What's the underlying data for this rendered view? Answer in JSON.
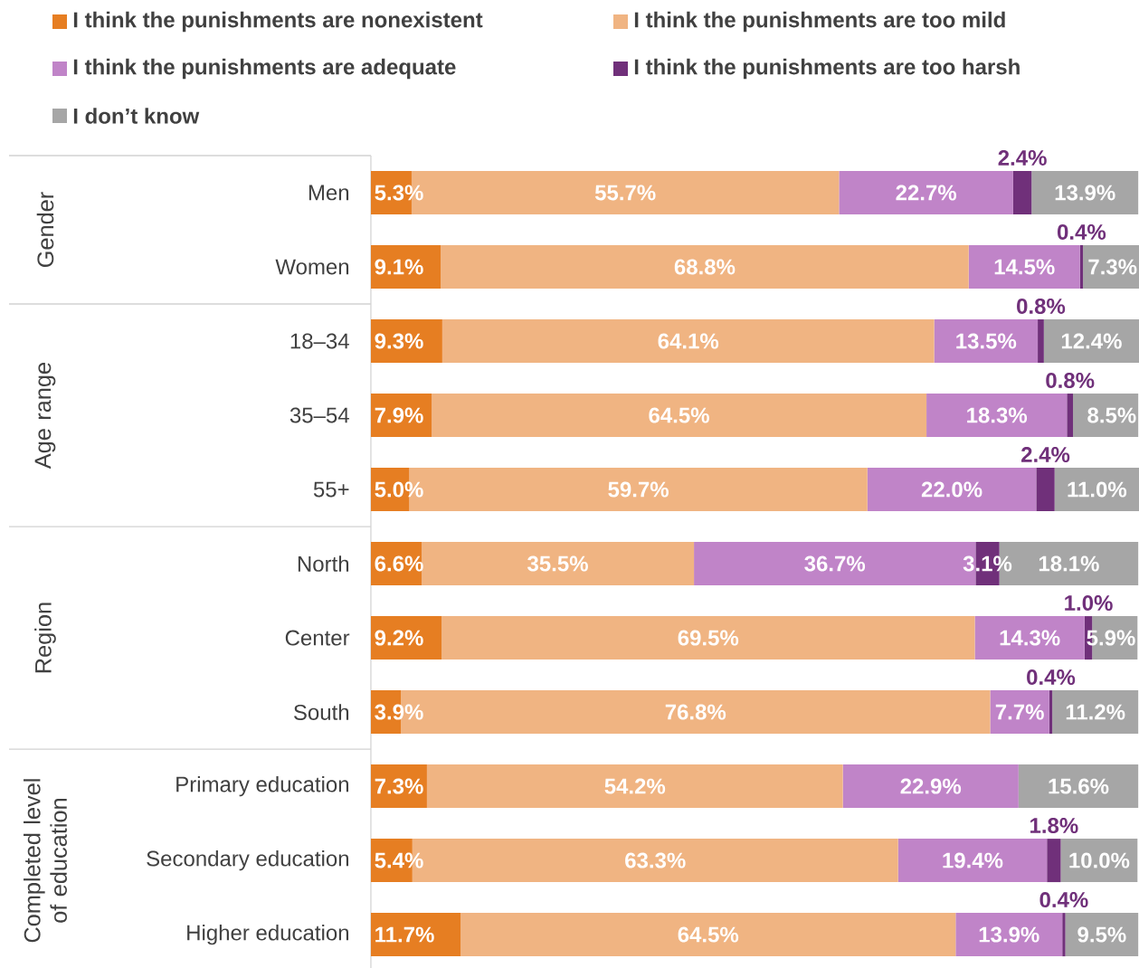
{
  "chart_data": {
    "type": "bar",
    "orientation": "horizontal",
    "stacked": true,
    "legend": "top",
    "xlim": [
      0,
      100.1
    ],
    "categories": [
      "Men",
      "Women",
      "18–34",
      "35–54",
      "55+",
      "North",
      "Center",
      "South",
      "Primary education",
      "Secondary education",
      "Higher education"
    ],
    "annotations": [
      "Gender",
      "Age range",
      "Region",
      "Completed level of education"
    ],
    "series": [
      {
        "name": "I think the punishments are nonexistent",
        "color": "#e67e22",
        "values": [
          5.3,
          9.1,
          9.3,
          7.9,
          5.0,
          6.6,
          9.2,
          3.9,
          7.3,
          5.4,
          11.7
        ],
        "value_labels": [
          "5.3%",
          "9.1%",
          "9.3%",
          "7.9%",
          "5.0%",
          "6.6%",
          "9.2%",
          "3.9%",
          "7.3%",
          "5.4%",
          "11.7%"
        ]
      },
      {
        "name": "I think the punishments are too mild",
        "color": "#f0b482",
        "values": [
          55.7,
          68.8,
          64.1,
          64.5,
          59.7,
          35.5,
          69.5,
          76.8,
          54.2,
          63.3,
          64.5
        ],
        "value_labels": [
          "55.7%",
          "68.8%",
          "64.1%",
          "64.5%",
          "59.7%",
          "35.5%",
          "69.5%",
          "76.8%",
          "54.2%",
          "63.3%",
          "64.5%"
        ]
      },
      {
        "name": "I think the punishments are adequate",
        "color": "#c084c8",
        "values": [
          22.7,
          14.5,
          13.5,
          18.3,
          22.0,
          36.7,
          14.3,
          7.7,
          22.9,
          19.4,
          13.9
        ],
        "value_labels": [
          "22.7%",
          "14.5%",
          "13.5%",
          "18.3%",
          "22.0%",
          "36.7%",
          "14.3%",
          "7.7%",
          "22.9%",
          "19.4%",
          "13.9%"
        ]
      },
      {
        "name": "I think the punishments are too harsh",
        "color": "#70307a",
        "values": [
          2.4,
          0.4,
          0.8,
          0.8,
          2.4,
          3.1,
          1.0,
          0.4,
          0,
          1.8,
          0.4
        ],
        "value_labels": [
          "2.4%",
          "0.4%",
          "0.8%",
          "0.8%",
          "2.4%",
          "3.1%",
          "1.0%",
          "0.4%",
          null,
          "1.8%",
          "0.4%"
        ]
      },
      {
        "name": "I don’t know",
        "color": "#a6a6a6",
        "values": [
          13.9,
          7.3,
          12.4,
          8.5,
          11.0,
          18.1,
          5.9,
          11.2,
          15.6,
          10.0,
          9.5
        ],
        "value_labels": [
          "13.9%",
          "7.3%",
          "12.4%",
          "8.5%",
          "11.0%",
          "18.1%",
          "5.9%",
          "11.2%",
          "15.6%",
          "10.0%",
          "9.5%"
        ]
      }
    ]
  }
}
